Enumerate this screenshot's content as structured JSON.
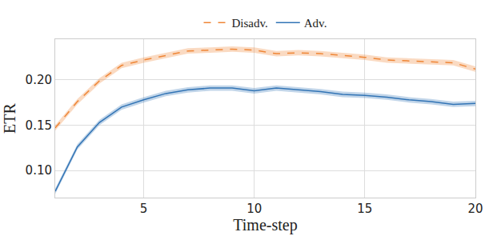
{
  "chart_data": {
    "type": "line",
    "x_label": "Time-step",
    "y_label": "ETR",
    "x": [
      1,
      2,
      3,
      4,
      5,
      6,
      7,
      8,
      9,
      10,
      11,
      12,
      13,
      14,
      15,
      16,
      17,
      18,
      19,
      20
    ],
    "series": [
      {
        "name": "Adv.",
        "color": "#3274b5",
        "line_style": "solid",
        "values": [
          0.077,
          0.126,
          0.153,
          0.17,
          0.178,
          0.185,
          0.189,
          0.191,
          0.191,
          0.188,
          0.191,
          0.189,
          0.187,
          0.184,
          0.183,
          0.181,
          0.178,
          0.176,
          0.173,
          0.174
        ],
        "error": [
          0.003,
          0.003,
          0.003,
          0.003,
          0.003,
          0.003,
          0.003,
          0.003,
          0.003,
          0.003,
          0.003,
          0.003,
          0.003,
          0.003,
          0.003,
          0.003,
          0.003,
          0.003,
          0.003,
          0.003
        ]
      },
      {
        "name": "Disadv.",
        "color": "#ef8636",
        "line_style": "dash",
        "values": [
          0.147,
          0.176,
          0.199,
          0.216,
          0.222,
          0.227,
          0.232,
          0.233,
          0.234,
          0.233,
          0.229,
          0.23,
          0.229,
          0.227,
          0.225,
          0.222,
          0.221,
          0.22,
          0.219,
          0.212
        ],
        "error": [
          0.003,
          0.003,
          0.003,
          0.003,
          0.003,
          0.003,
          0.003,
          0.003,
          0.003,
          0.003,
          0.003,
          0.003,
          0.003,
          0.003,
          0.003,
          0.003,
          0.003,
          0.003,
          0.003,
          0.003
        ]
      }
    ],
    "xlim": [
      1,
      20
    ],
    "xticks": [
      5,
      10,
      15,
      20
    ],
    "ylim": [
      0.07,
      0.245
    ],
    "yticks": [
      {
        "value": 0.1,
        "label": "0.10"
      },
      0.15,
      {
        "value": 0.2,
        "label": "0.20"
      }
    ],
    "grid": true,
    "legend": "top"
  }
}
